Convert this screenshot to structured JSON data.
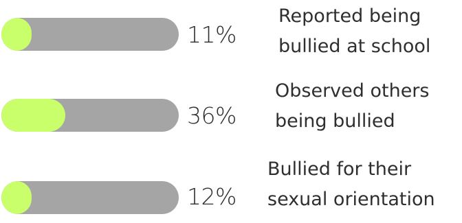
{
  "chart_data": {
    "type": "bar",
    "orientation": "horizontal",
    "ylim": [
      0,
      100
    ],
    "fill_color": "#c8ff6a",
    "track_color": "#a5a5a5",
    "items": [
      {
        "value": 11,
        "percent_label": "11%",
        "label_lines": [
          "Reported being",
          "bullied at school"
        ]
      },
      {
        "value": 36,
        "percent_label": "36%",
        "label_lines": [
          "Observed others",
          "being bullied"
        ]
      },
      {
        "value": 12,
        "percent_label": "12%",
        "label_lines": [
          "Bullied for their",
          "sexual orientation"
        ]
      }
    ]
  }
}
